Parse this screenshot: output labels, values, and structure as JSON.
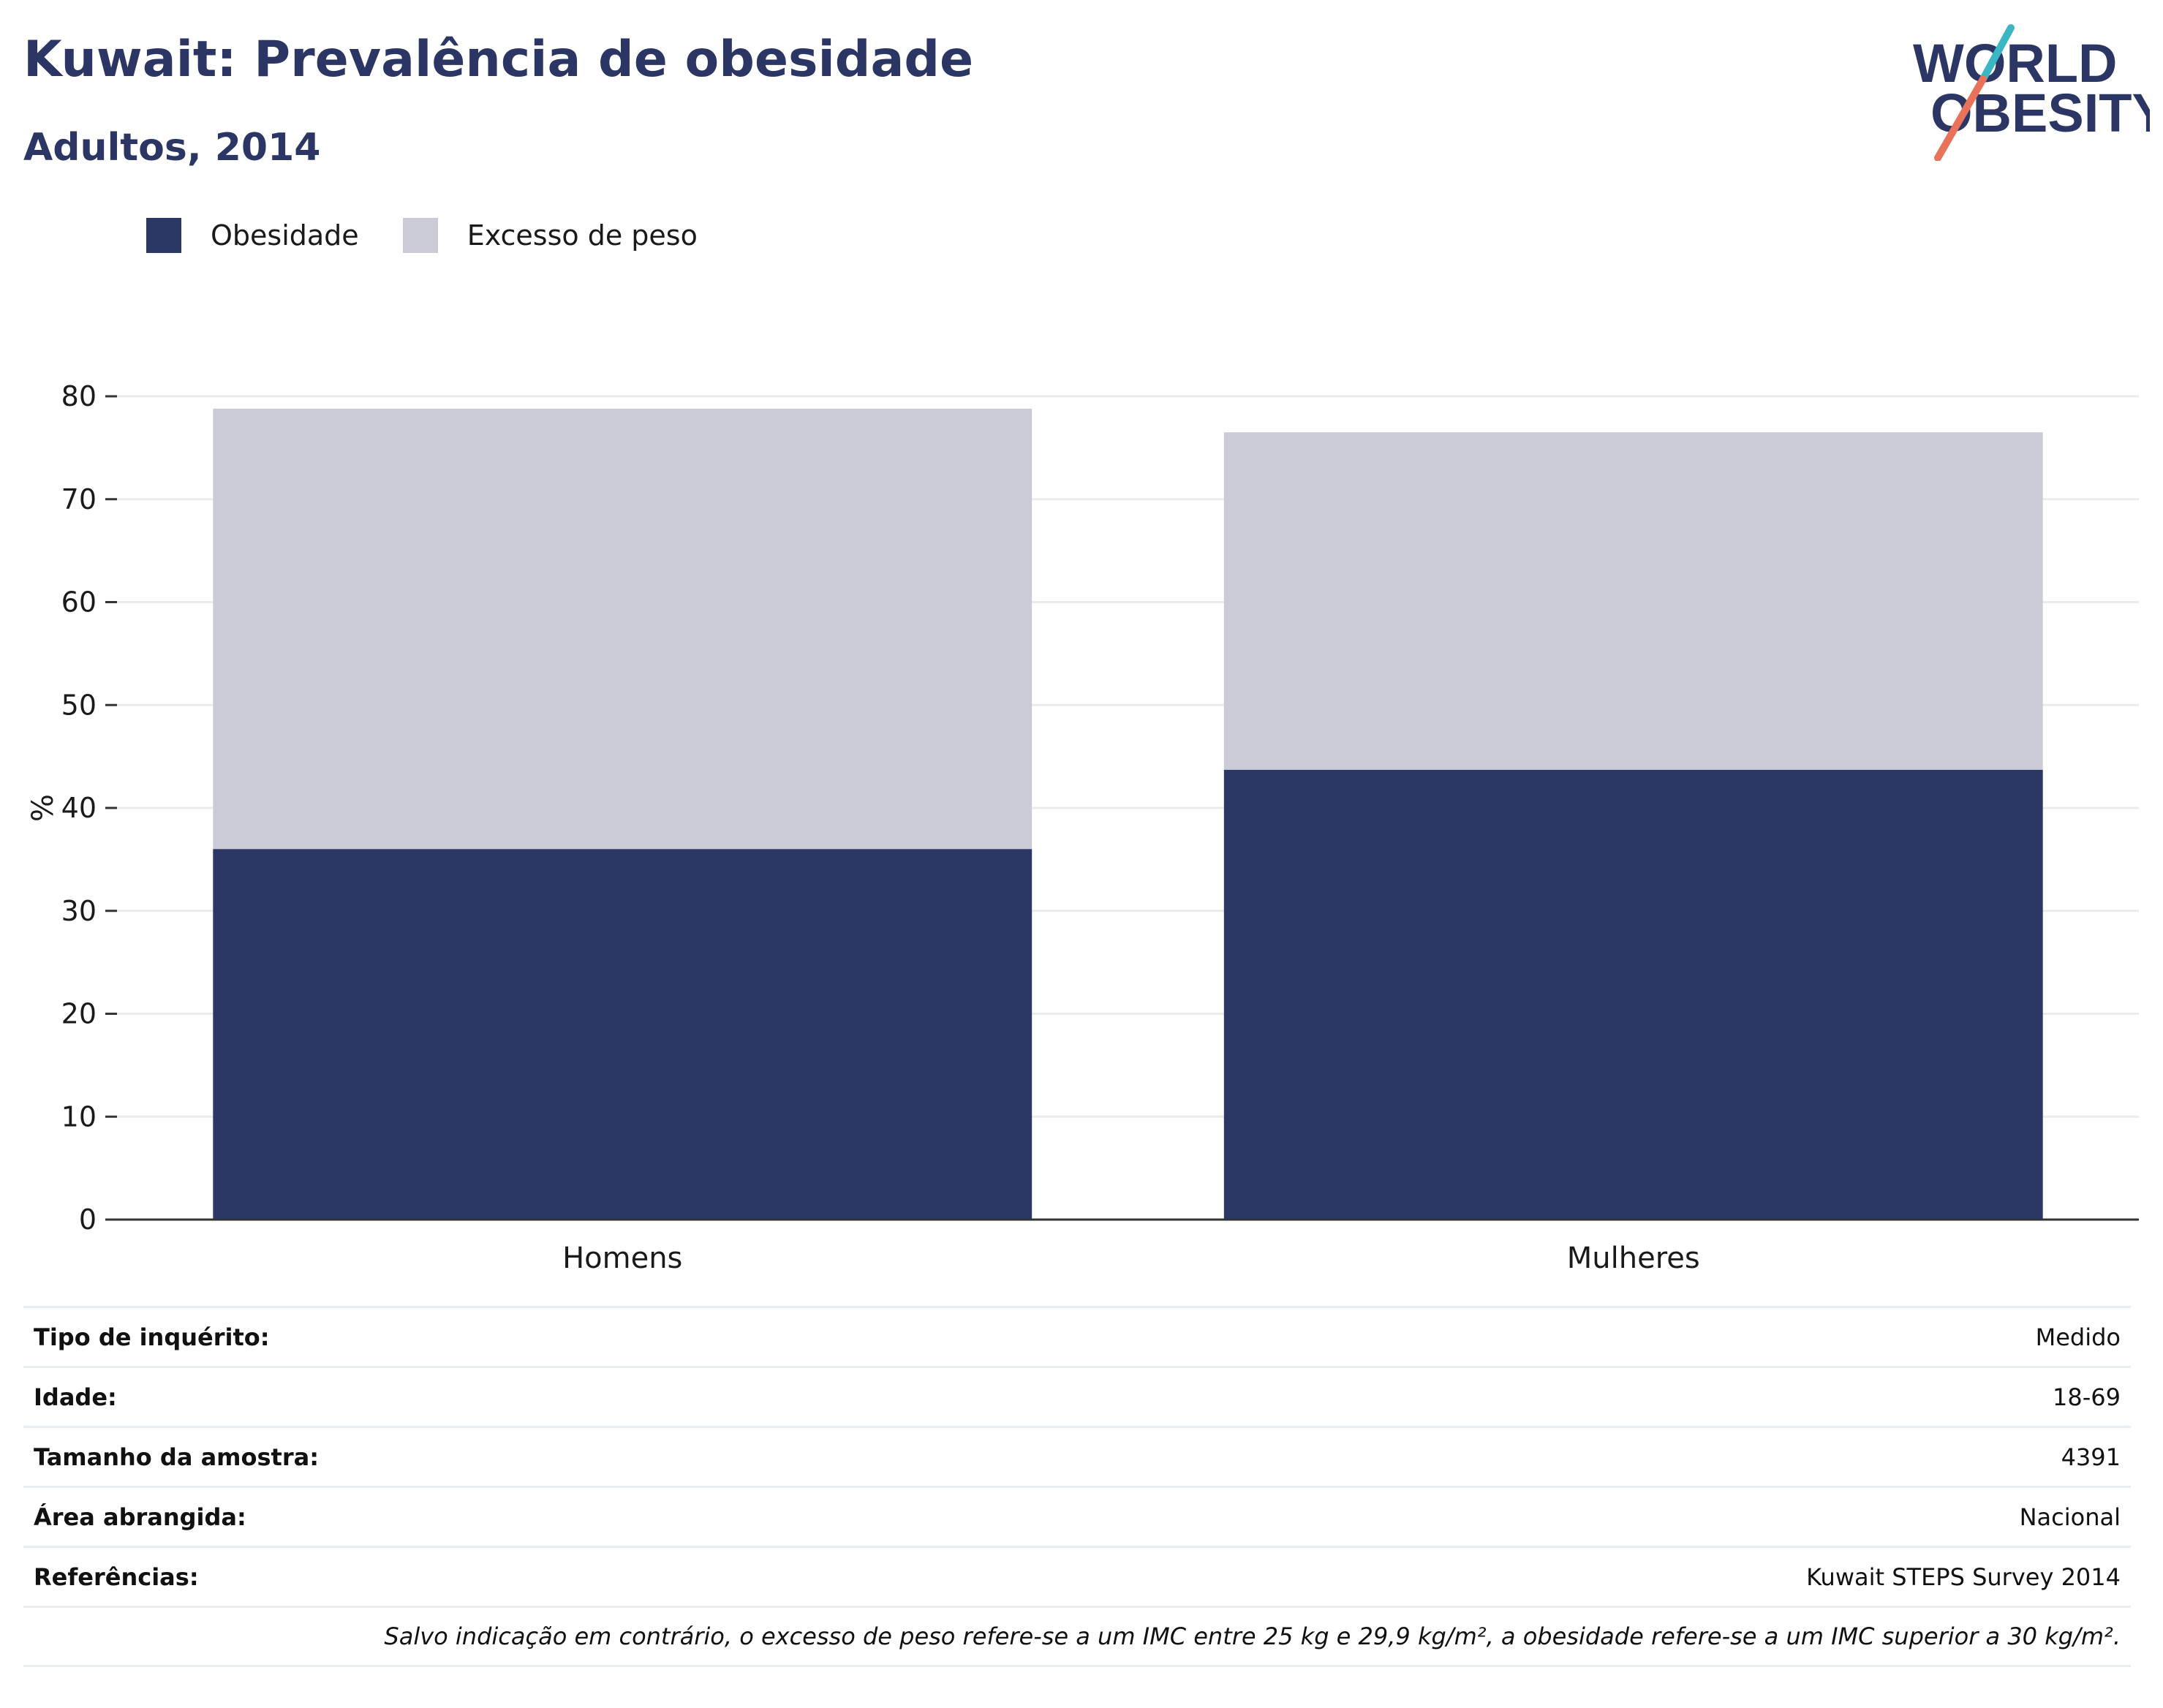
{
  "header": {
    "title": "Kuwait: Prevalência de obesidade",
    "subtitle": "Adultos, 2014"
  },
  "logo": {
    "line1": "WORLD",
    "line2": "OBESITY",
    "icon": "world-obesity-logo"
  },
  "colors": {
    "obesity": "#2b3765",
    "overweight": "#cacbd7",
    "axis": "#333333",
    "grid": "#ebebeb"
  },
  "legend": [
    {
      "label": "Obesidade",
      "color": "#2b3765"
    },
    {
      "label": "Excesso de peso",
      "color": "#cacbd7"
    }
  ],
  "chart_data": {
    "type": "bar",
    "stacking": "overlay",
    "categories": [
      "Homens",
      "Mulheres"
    ],
    "series": [
      {
        "name": "Excesso de peso",
        "values": [
          78.8,
          76.5
        ]
      },
      {
        "name": "Obesidade",
        "values": [
          36.0,
          43.7
        ]
      }
    ],
    "ylabel": "%",
    "ylim": [
      0,
      80
    ],
    "yticks": [
      0,
      10,
      20,
      30,
      40,
      50,
      60,
      70,
      80
    ],
    "grid": true,
    "legend_position": "top-left"
  },
  "info": {
    "rows": [
      {
        "label": "Tipo de inquérito:",
        "value": "Medido"
      },
      {
        "label": "Idade:",
        "value": "18-69"
      },
      {
        "label": "Tamanho da amostra:",
        "value": "4391"
      },
      {
        "label": "Área abrangida:",
        "value": "Nacional"
      },
      {
        "label": "Referências:",
        "value": "Kuwait STEPS Survey 2014"
      }
    ],
    "note": "Salvo indicação em contrário, o excesso de peso refere-se a um IMC entre 25 kg e 29,9 kg/m², a obesidade refere-se a um IMC superior a 30 kg/m²."
  }
}
